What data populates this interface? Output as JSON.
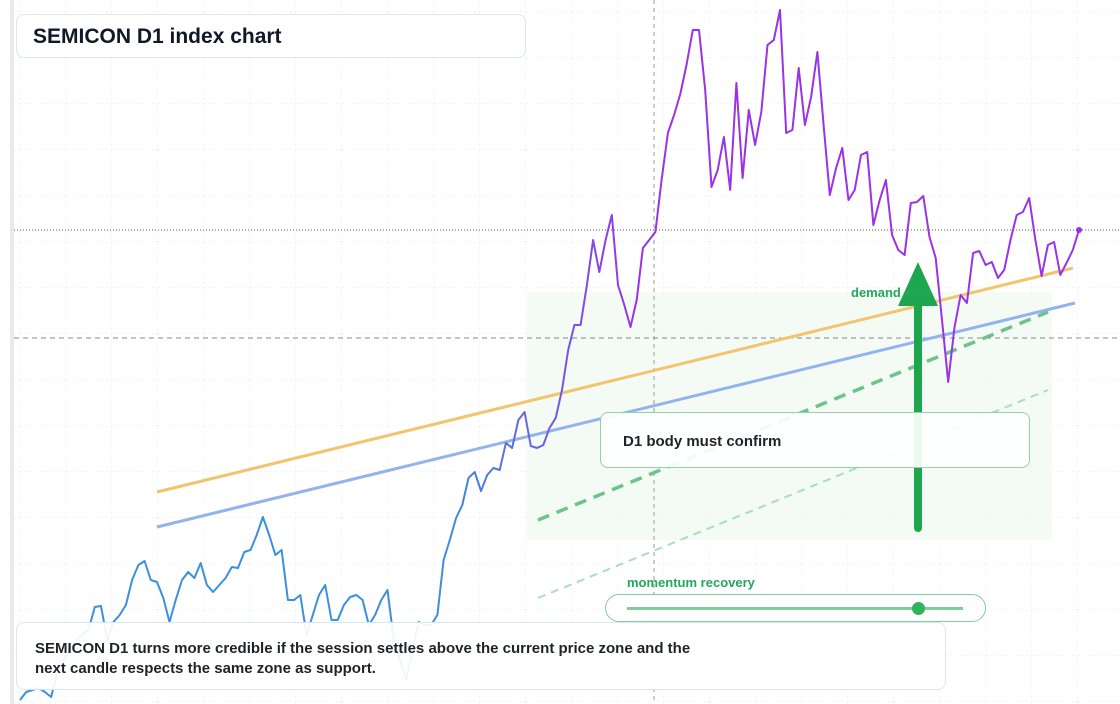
{
  "title": "SEMICON D1 index chart",
  "chart_data": {
    "type": "line",
    "color_start": "#3b8fdb",
    "color_end": "#9a32e6",
    "ylim": [
      0,
      704
    ],
    "values": [
      4,
      12,
      14,
      16,
      12,
      7,
      32,
      44,
      54,
      64,
      69,
      74,
      97,
      98,
      64,
      82,
      89,
      99,
      124,
      139,
      143,
      124,
      122,
      106,
      82,
      104,
      124,
      132,
      126,
      141,
      119,
      112,
      119,
      126,
      137,
      136,
      152,
      154,
      169,
      187,
      169,
      149,
      154,
      104,
      104,
      109,
      69,
      89,
      109,
      119,
      84,
      84,
      99,
      107,
      109,
      104,
      79,
      89,
      104,
      114,
      64,
      44,
      24,
      54,
      82,
      79,
      79,
      89,
      144,
      164,
      186,
      199,
      226,
      232,
      213,
      229,
      236,
      234,
      261,
      256,
      284,
      292,
      258,
      256,
      259,
      276,
      286,
      314,
      354,
      379,
      379,
      419,
      464,
      432,
      464,
      489,
      419,
      399,
      377,
      404,
      456,
      464,
      472,
      524,
      571,
      589,
      610,
      639,
      674,
      674,
      614,
      517,
      534,
      567,
      514,
      621,
      526,
      594,
      559,
      592,
      659,
      664,
      694,
      571,
      574,
      636,
      579,
      607,
      652,
      579,
      509,
      536,
      556,
      504,
      514,
      549,
      552,
      479,
      504,
      524,
      469,
      454,
      449,
      501,
      502,
      508,
      467,
      446,
      384,
      322,
      376,
      409,
      401,
      451,
      453,
      439,
      442,
      426,
      434,
      464,
      489,
      492,
      506,
      464,
      428,
      459,
      462,
      429,
      441,
      454,
      474
    ]
  },
  "demand_label": "demand side",
  "confirm_label": "D1 body must confirm",
  "momentum_label": "momentum recovery",
  "note": "SEMICON D1 turns more credible if the session settles above the current price zone and the next candle respects the same zone as support."
}
